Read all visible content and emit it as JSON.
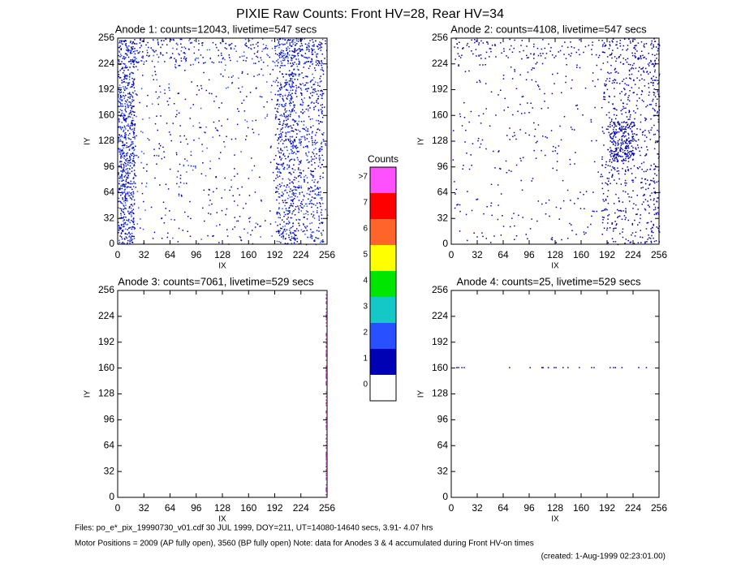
{
  "title": "PIXIE Raw Counts:  Front HV=28, Rear HV=34",
  "chart_data": [
    {
      "type": "heatmap",
      "title": "Anode 1: counts=12043, livetime=547 secs",
      "xlabel": "IX",
      "ylabel": "IY",
      "xlim": [
        0,
        256
      ],
      "ylim": [
        0,
        256
      ],
      "xticks": [
        0,
        32,
        64,
        96,
        128,
        160,
        192,
        224,
        256
      ],
      "yticks": [
        0,
        32,
        64,
        96,
        128,
        160,
        192,
        224,
        256
      ]
    },
    {
      "type": "heatmap",
      "title": "Anode 2: counts=4108, livetime=547 secs",
      "xlabel": "IX",
      "ylabel": "IY",
      "xlim": [
        0,
        256
      ],
      "ylim": [
        0,
        256
      ],
      "xticks": [
        0,
        32,
        64,
        96,
        128,
        160,
        192,
        224,
        256
      ],
      "yticks": [
        0,
        32,
        64,
        96,
        128,
        160,
        192,
        224,
        256
      ]
    },
    {
      "type": "heatmap",
      "title": "Anode 3: counts=7061, livetime=529 secs",
      "xlabel": "IX",
      "ylabel": "IY",
      "xlim": [
        0,
        256
      ],
      "ylim": [
        0,
        256
      ],
      "xticks": [
        0,
        32,
        64,
        96,
        128,
        160,
        192,
        224,
        256
      ],
      "yticks": [
        0,
        32,
        64,
        96,
        128,
        160,
        192,
        224,
        256
      ]
    },
    {
      "type": "heatmap",
      "title": "Anode 4: counts=25, livetime=529 secs",
      "xlabel": "IX",
      "ylabel": "IY",
      "xlim": [
        0,
        256
      ],
      "ylim": [
        0,
        256
      ],
      "xticks": [
        0,
        32,
        64,
        96,
        128,
        160,
        192,
        224,
        256
      ],
      "yticks": [
        0,
        32,
        64,
        96,
        128,
        160,
        192,
        224,
        256
      ]
    },
    {
      "type": "colorbar",
      "title": "Counts",
      "categories": [
        "0",
        "1",
        "2",
        "3",
        "4",
        "5",
        "6",
        "7",
        ">7"
      ],
      "colors": [
        "#ffffff",
        "#0000b4",
        "#2850ff",
        "#14c8c8",
        "#00e600",
        "#ffff00",
        "#ff6428",
        "#ff0000",
        "#ff50ff"
      ]
    }
  ],
  "footer": {
    "files": "Files: po_e*_pix_19990730_v01.cdf    30 JUL 1999, DOY=211, UT=14080-14640 secs,  3.91- 4.07 hrs",
    "motor": "Motor Positions = 2009 (AP fully open), 3560 (BP fully open)    Note: data for Anodes 3 & 4 accumulated during Front HV-on times",
    "created": "(created:  1-Aug-1999 02:23:01.00)"
  }
}
